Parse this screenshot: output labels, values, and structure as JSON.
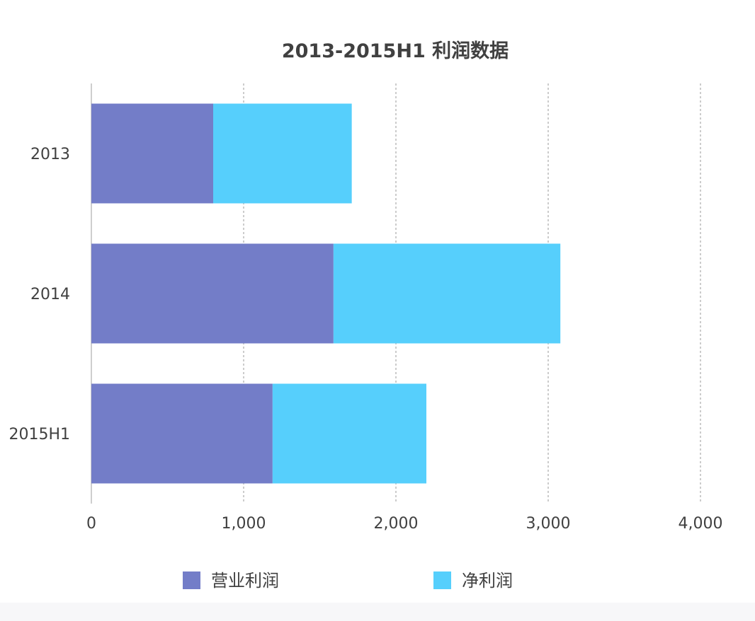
{
  "chart_data": {
    "type": "bar",
    "orientation": "horizontal",
    "stacked": true,
    "title": "2013-2015H1 利润数据",
    "categories": [
      "2013",
      "2014",
      "2015H1"
    ],
    "series": [
      {
        "name": "营业利润",
        "color": "#737dc8",
        "values": [
          800,
          1590,
          1190
        ]
      },
      {
        "name": "净利润",
        "color": "#56cffc",
        "values": [
          910,
          1490,
          1010
        ]
      }
    ],
    "xlim": [
      0,
      4000
    ],
    "xticks": [
      0,
      1000,
      2000,
      3000,
      4000
    ],
    "xtick_labels": [
      "0",
      "1,000",
      "2,000",
      "3,000",
      "4,000"
    ],
    "grid": "vertical-dashed",
    "legend_position": "bottom"
  }
}
